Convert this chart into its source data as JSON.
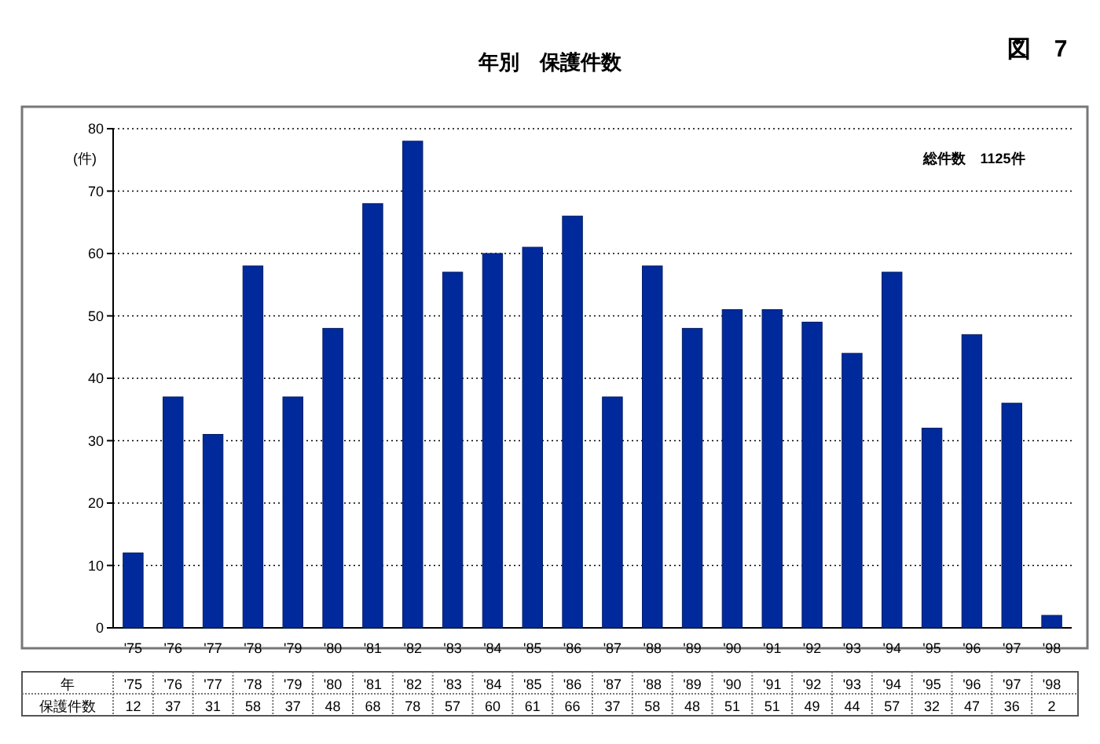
{
  "chart_data": {
    "type": "bar",
    "title": "年別　保護件数",
    "ylabel": "(件)",
    "categories": [
      "'75",
      "'76",
      "'77",
      "'78",
      "'79",
      "'80",
      "'81",
      "'82",
      "'83",
      "'84",
      "'85",
      "'86",
      "'87",
      "'88",
      "'89",
      "'90",
      "'91",
      "'92",
      "'93",
      "'94",
      "'95",
      "'96",
      "'97",
      "'98"
    ],
    "values": [
      12,
      37,
      31,
      58,
      37,
      48,
      68,
      78,
      57,
      60,
      61,
      66,
      37,
      58,
      48,
      51,
      51,
      49,
      44,
      57,
      32,
      47,
      36,
      2
    ],
    "color": "#002a9c",
    "ylim": [
      0,
      80
    ],
    "yticks": [
      0,
      10,
      20,
      30,
      40,
      50,
      60,
      70,
      80
    ],
    "grid": "y",
    "data_labels": true,
    "annotations": [
      "総件数　1125件",
      "図　7",
      "年",
      "保護件数"
    ]
  }
}
